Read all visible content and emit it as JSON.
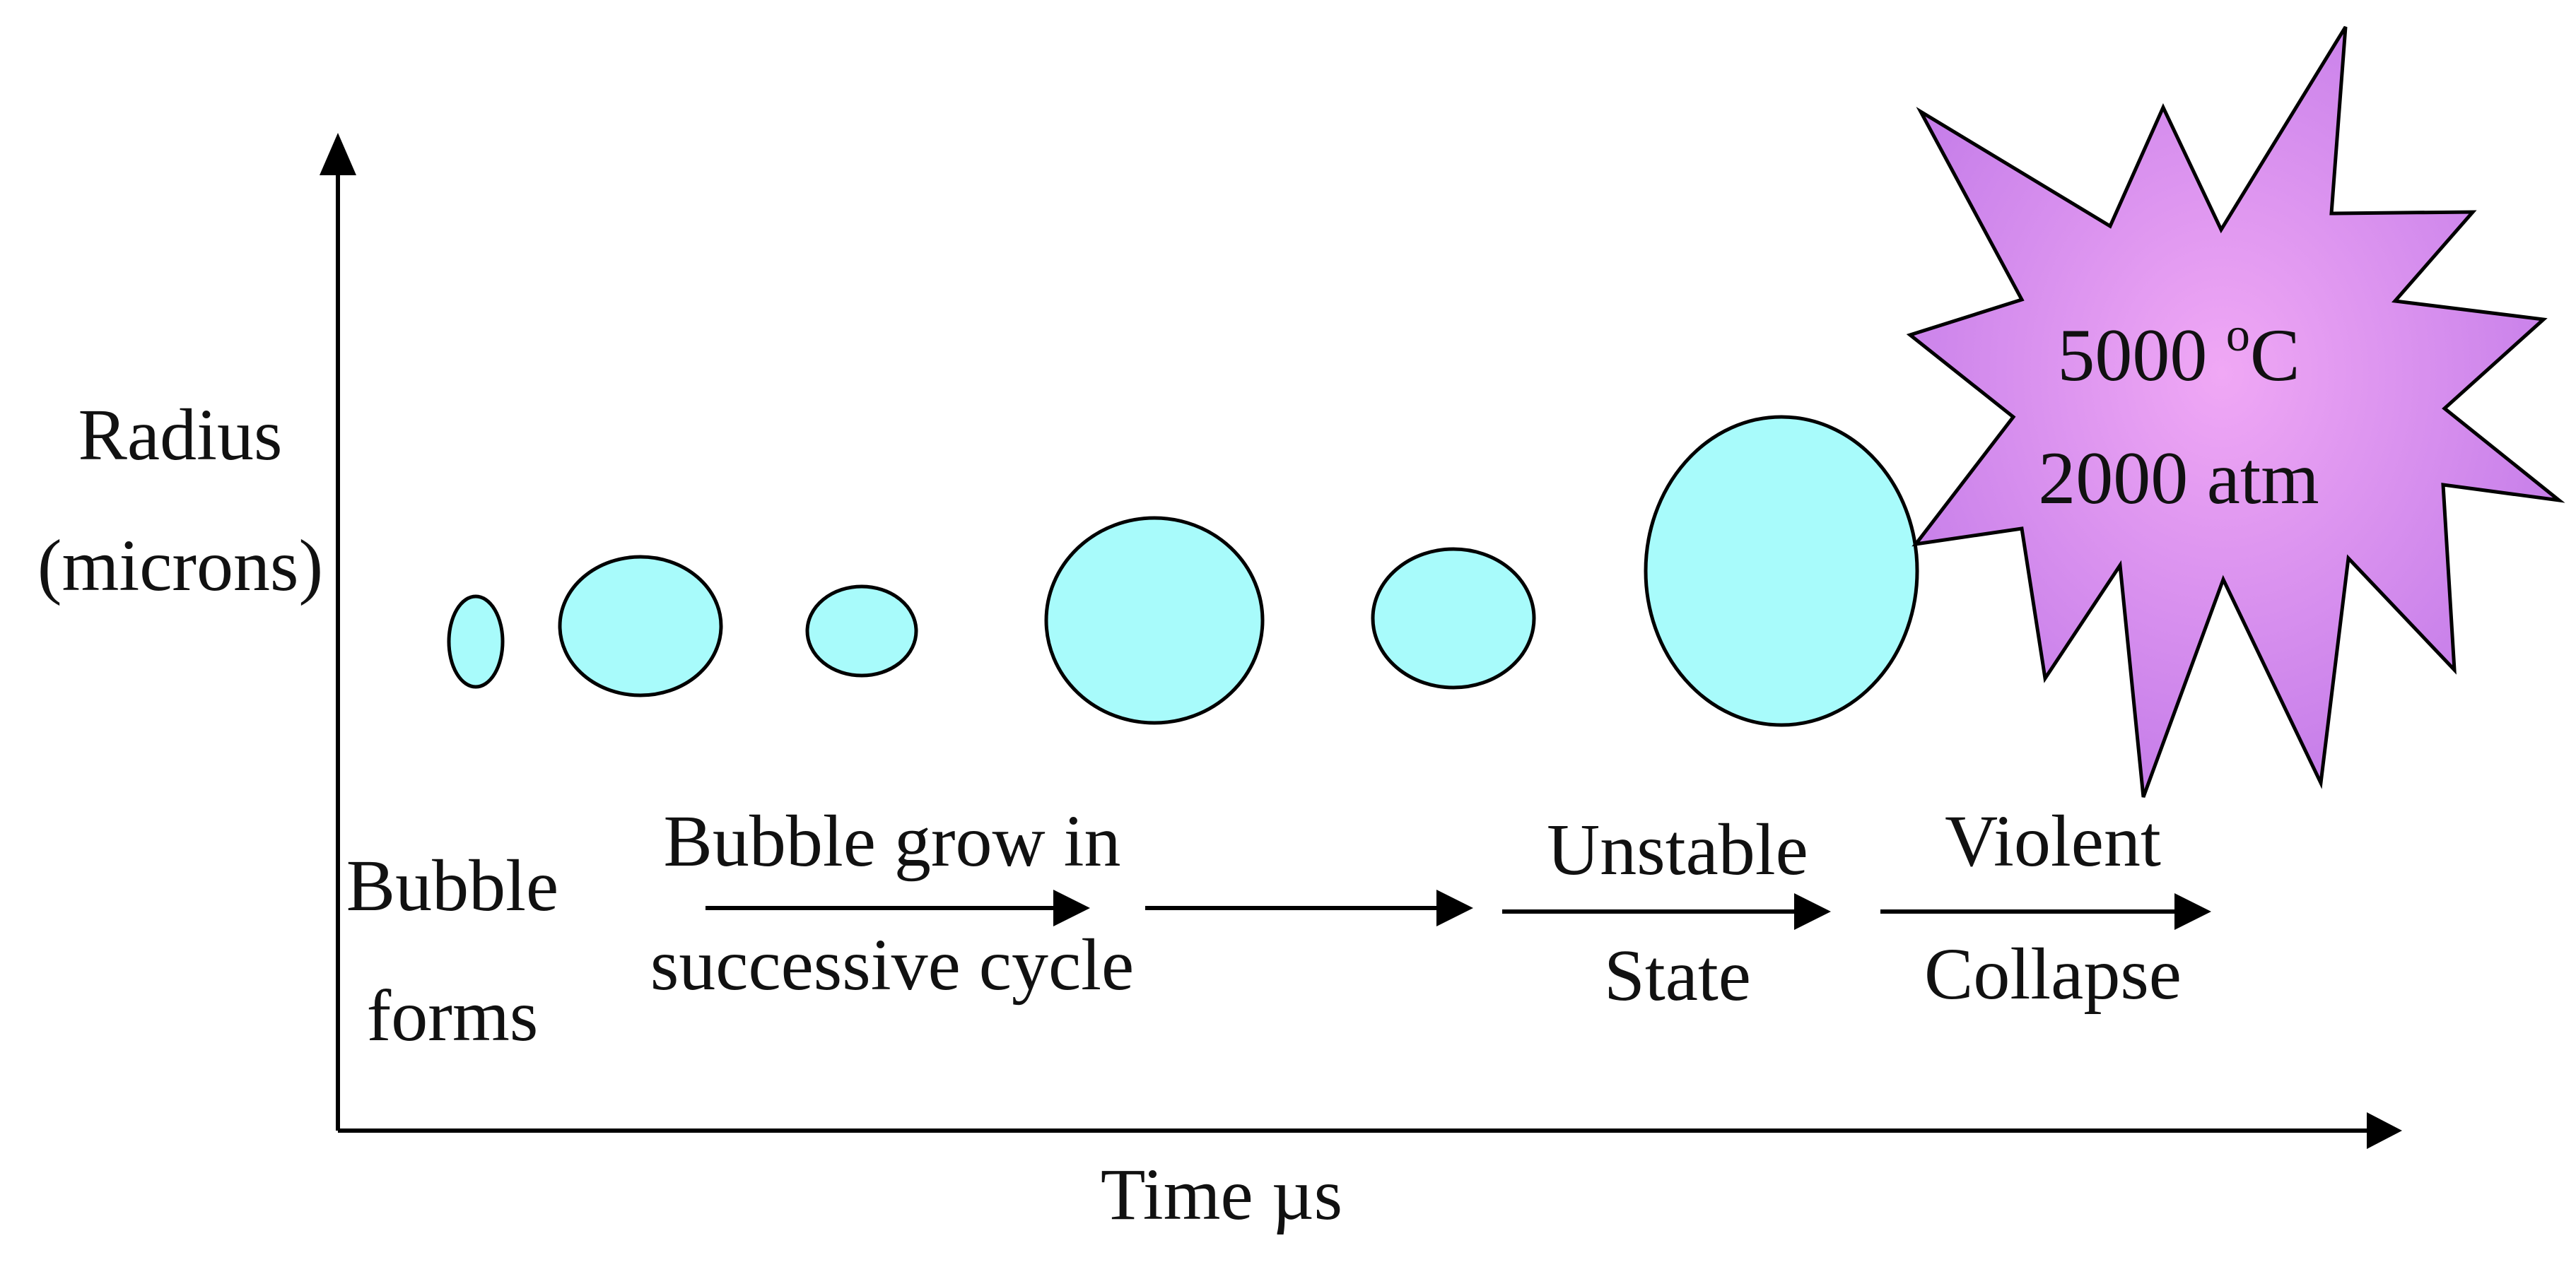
{
  "axes": {
    "y_label_line1": "Radius",
    "y_label_line2": "(microns)",
    "x_label": "Time µs"
  },
  "stages": {
    "forms_line1": "Bubble",
    "forms_line2": "forms",
    "grow_line1": "Bubble grow in",
    "grow_line2": "successive cycle",
    "unstable_line1": "Unstable",
    "unstable_line2": "State",
    "collapse_line1": "Violent",
    "collapse_line2": "Collapse"
  },
  "burst": {
    "temperature_value": "5000 ",
    "temperature_sup": "o",
    "temperature_unit": "C",
    "pressure": "2000 atm"
  },
  "colors": {
    "bubble_fill": "#a8fbfb",
    "burst_center": "#f0a8f5",
    "burst_edge": "#c27ae8",
    "ink": "#000000"
  }
}
